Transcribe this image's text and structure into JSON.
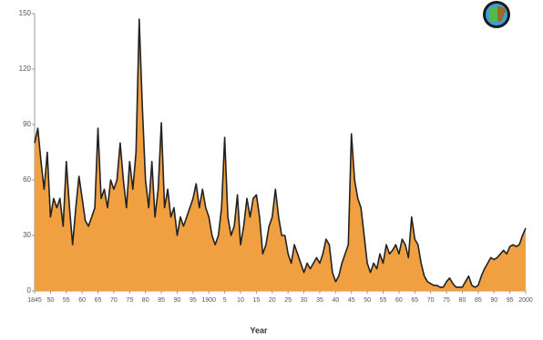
{
  "chart_data": {
    "type": "area",
    "x_label": "Year",
    "color": "#f0a040",
    "line_color": "#222222",
    "x": [
      1845,
      1846,
      1847,
      1848,
      1849,
      1850,
      1851,
      1852,
      1853,
      1854,
      1855,
      1856,
      1857,
      1858,
      1859,
      1860,
      1861,
      1862,
      1863,
      1864,
      1865,
      1866,
      1867,
      1868,
      1869,
      1870,
      1871,
      1872,
      1873,
      1874,
      1875,
      1876,
      1877,
      1878,
      1879,
      1880,
      1881,
      1882,
      1883,
      1884,
      1885,
      1886,
      1887,
      1888,
      1889,
      1890,
      1891,
      1892,
      1893,
      1894,
      1895,
      1896,
      1897,
      1898,
      1899,
      1900,
      1901,
      1902,
      1903,
      1904,
      1905,
      1906,
      1907,
      1908,
      1909,
      1910,
      1911,
      1912,
      1913,
      1914,
      1915,
      1916,
      1917,
      1918,
      1919,
      1920,
      1921,
      1922,
      1923,
      1924,
      1925,
      1926,
      1927,
      1928,
      1929,
      1930,
      1931,
      1932,
      1933,
      1934,
      1935,
      1936,
      1937,
      1938,
      1939,
      1940,
      1941,
      1942,
      1943,
      1944,
      1945,
      1946,
      1947,
      1948,
      1949,
      1950,
      1951,
      1952,
      1953,
      1954,
      1955,
      1956,
      1957,
      1958,
      1959,
      1960,
      1961,
      1962,
      1963,
      1964,
      1965,
      1966,
      1967,
      1968,
      1969,
      1970,
      1971,
      1972,
      1973,
      1974,
      1975,
      1976,
      1977,
      1978,
      1979,
      1980,
      1981,
      1982,
      1983,
      1984,
      1985,
      1986,
      1987,
      1988,
      1989,
      1990,
      1991,
      1992,
      1993,
      1994,
      1995,
      1996,
      1997,
      1998,
      1999,
      2000
    ],
    "values": [
      80,
      88,
      70,
      55,
      75,
      40,
      50,
      45,
      50,
      35,
      70,
      45,
      25,
      45,
      62,
      50,
      38,
      35,
      40,
      45,
      88,
      50,
      55,
      45,
      60,
      55,
      60,
      80,
      60,
      45,
      70,
      55,
      75,
      147,
      100,
      60,
      45,
      70,
      40,
      55,
      91,
      45,
      55,
      40,
      45,
      30,
      40,
      35,
      40,
      45,
      50,
      58,
      45,
      55,
      45,
      40,
      30,
      25,
      30,
      45,
      83,
      40,
      30,
      35,
      52,
      25,
      35,
      50,
      40,
      50,
      52,
      40,
      20,
      25,
      35,
      40,
      55,
      40,
      30,
      30,
      20,
      15,
      25,
      20,
      15,
      10,
      15,
      12,
      15,
      18,
      15,
      20,
      28,
      25,
      10,
      5,
      8,
      15,
      20,
      25,
      85,
      60,
      50,
      45,
      30,
      15,
      10,
      15,
      12,
      20,
      15,
      25,
      20,
      22,
      25,
      20,
      28,
      25,
      18,
      40,
      28,
      25,
      15,
      8,
      5,
      4,
      3,
      3,
      2,
      2,
      5,
      7,
      4,
      2,
      2,
      2,
      5,
      8,
      3,
      2,
      3,
      8,
      12,
      15,
      18,
      17,
      18,
      20,
      22,
      20,
      24,
      25,
      24,
      25,
      30,
      34
    ],
    "xlim": [
      1845,
      2000
    ],
    "xticks": [
      1845,
      {
        "value": 1850,
        "label": "50"
      },
      {
        "value": 1855,
        "label": "55"
      },
      {
        "value": 1860,
        "label": "60"
      },
      {
        "value": 1865,
        "label": "65"
      },
      {
        "value": 1870,
        "label": "70"
      },
      {
        "value": 1875,
        "label": "75"
      },
      {
        "value": 1880,
        "label": "80"
      },
      {
        "value": 1885,
        "label": "85"
      },
      {
        "value": 1890,
        "label": "90"
      },
      {
        "value": 1895,
        "label": "95"
      },
      1900,
      {
        "value": 1905,
        "label": "5"
      },
      {
        "value": 1910,
        "label": "10"
      },
      {
        "value": 1915,
        "label": "15"
      },
      {
        "value": 1920,
        "label": "20"
      },
      {
        "value": 1925,
        "label": "25"
      },
      {
        "value": 1930,
        "label": "30"
      },
      {
        "value": 1935,
        "label": "35"
      },
      {
        "value": 1940,
        "label": "40"
      },
      {
        "value": 1945,
        "label": "45"
      },
      {
        "value": 1950,
        "label": "50"
      },
      {
        "value": 1955,
        "label": "55"
      },
      {
        "value": 1960,
        "label": "60"
      },
      {
        "value": 1965,
        "label": "65"
      },
      {
        "value": 1970,
        "label": "70"
      },
      {
        "value": 1975,
        "label": "75"
      },
      {
        "value": 1980,
        "label": "80"
      },
      {
        "value": 1985,
        "label": "85"
      },
      {
        "value": 1990,
        "label": "90"
      },
      {
        "value": 1995,
        "label": "95"
      },
      2000
    ],
    "ylim": [
      0,
      150
    ],
    "yticks": [
      0,
      30,
      60,
      90,
      120,
      150
    ]
  }
}
